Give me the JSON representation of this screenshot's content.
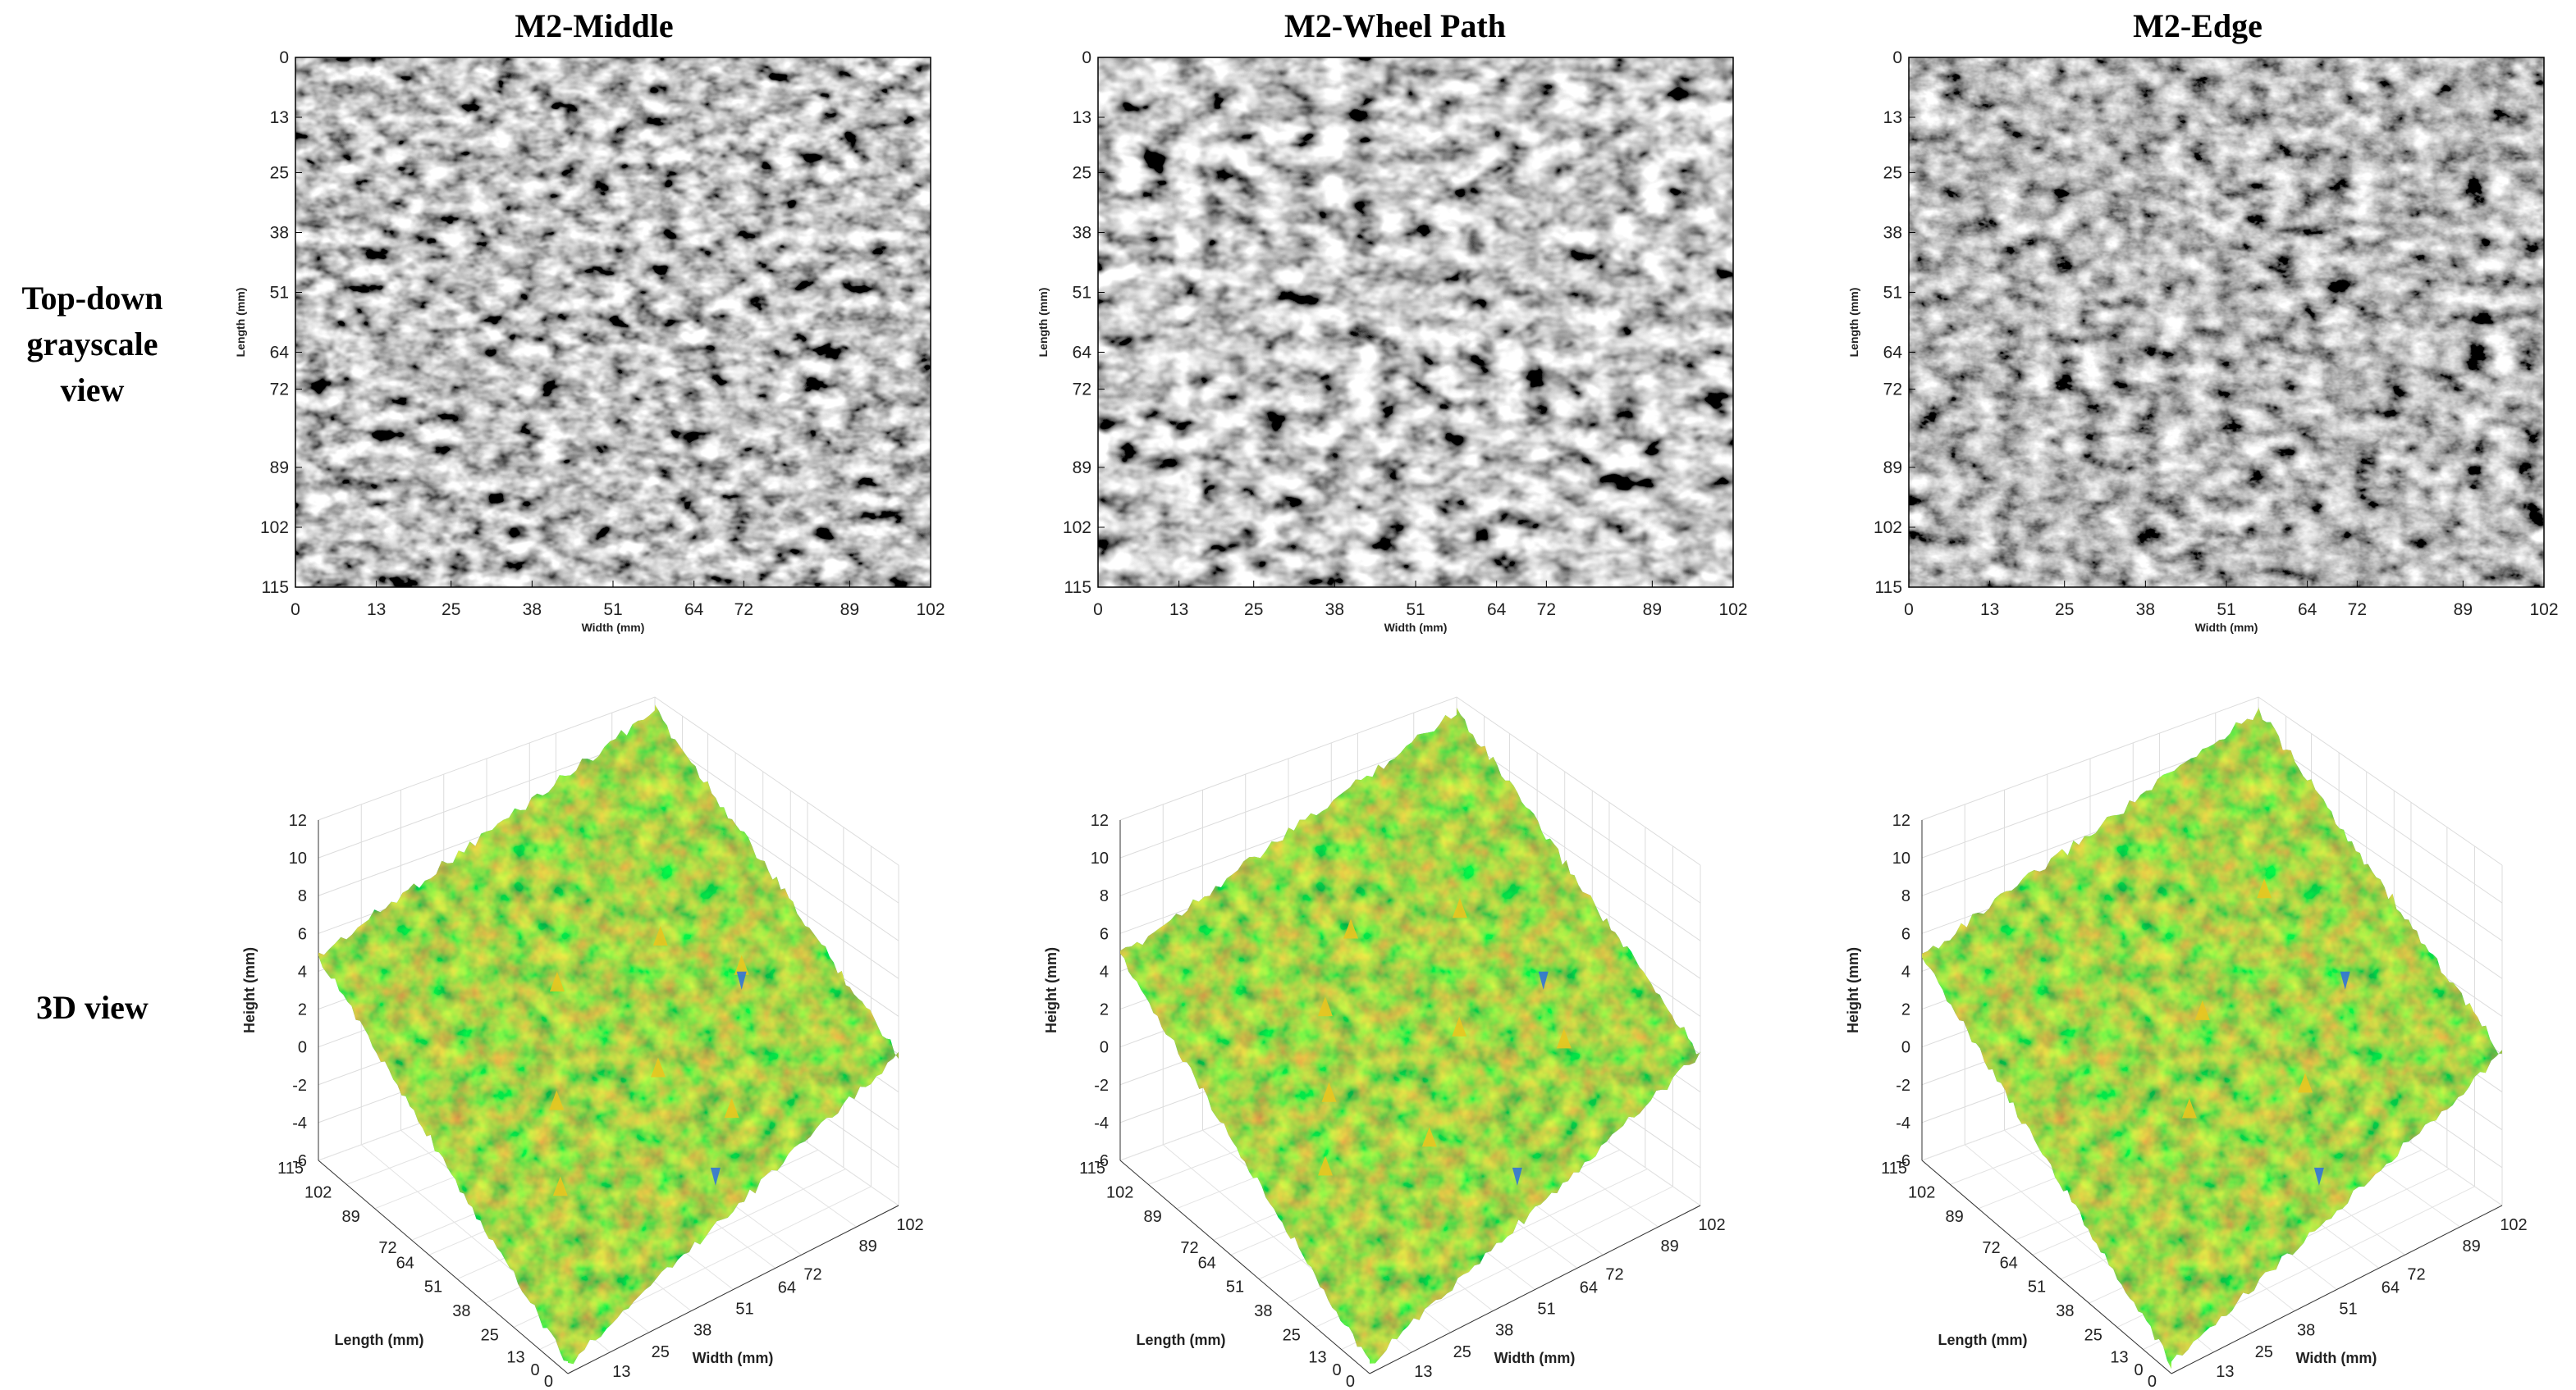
{
  "row_labels": {
    "top": [
      "Top-down",
      "grayscale",
      "view"
    ],
    "bottom": [
      "3D view"
    ]
  },
  "chart_data": [
    {
      "type": "heatmap",
      "title": "M2-Middle",
      "xlabel": "Width (mm)",
      "ylabel": "Length (mm)",
      "xticks": [
        "0",
        "13",
        "25",
        "38",
        "51",
        "64",
        "72",
        "89",
        "102"
      ],
      "yticks": [
        "0",
        "13",
        "25",
        "38",
        "51",
        "64",
        "72",
        "89",
        "102",
        "115"
      ],
      "xlim": [
        0,
        102
      ],
      "ylim": [
        115,
        0
      ],
      "colormap": "grayscale"
    },
    {
      "type": "heatmap",
      "title": "M2-Wheel Path",
      "xlabel": "Width (mm)",
      "ylabel": "Length (mm)",
      "xticks": [
        "0",
        "13",
        "25",
        "38",
        "51",
        "64",
        "72",
        "89",
        "102"
      ],
      "yticks": [
        "0",
        "13",
        "25",
        "38",
        "51",
        "64",
        "72",
        "89",
        "102",
        "115"
      ],
      "xlim": [
        0,
        102
      ],
      "ylim": [
        115,
        0
      ],
      "colormap": "grayscale"
    },
    {
      "type": "heatmap",
      "title": "M2-Edge",
      "xlabel": "Width (mm)",
      "ylabel": "Length (mm)",
      "xticks": [
        "0",
        "13",
        "25",
        "38",
        "51",
        "64",
        "72",
        "89",
        "102"
      ],
      "yticks": [
        "0",
        "13",
        "25",
        "38",
        "51",
        "64",
        "72",
        "89",
        "102",
        "115"
      ],
      "xlim": [
        0,
        102
      ],
      "ylim": [
        115,
        0
      ],
      "colormap": "grayscale"
    },
    {
      "type": "surface",
      "title": "",
      "xlabel": "Width (mm)",
      "ylabel": "Length (mm)",
      "zlabel": "Height (mm)",
      "width_ticks": [
        "0",
        "13",
        "25",
        "38",
        "51",
        "64",
        "72",
        "89",
        "102"
      ],
      "length_ticks": [
        "0",
        "13",
        "25",
        "38",
        "51",
        "64",
        "72",
        "89",
        "102",
        "115"
      ],
      "height_ticks": [
        "-6",
        "-4",
        "-2",
        "0",
        "2",
        "4",
        "6",
        "8",
        "10",
        "12"
      ],
      "zlim": [
        -6,
        12
      ],
      "colormap": "parula"
    },
    {
      "type": "surface",
      "title": "",
      "xlabel": "Width (mm)",
      "ylabel": "Length (mm)",
      "zlabel": "Height (mm)",
      "width_ticks": [
        "0",
        "13",
        "25",
        "38",
        "51",
        "64",
        "72",
        "89",
        "102"
      ],
      "length_ticks": [
        "0",
        "13",
        "25",
        "38",
        "51",
        "64",
        "72",
        "89",
        "102",
        "115"
      ],
      "height_ticks": [
        "-6",
        "-4",
        "-2",
        "0",
        "2",
        "4",
        "6",
        "8",
        "10",
        "12"
      ],
      "zlim": [
        -6,
        12
      ],
      "colormap": "parula"
    },
    {
      "type": "surface",
      "title": "",
      "xlabel": "Width (mm)",
      "ylabel": "Length (mm)",
      "zlabel": "Height (mm)",
      "width_ticks": [
        "0",
        "13",
        "25",
        "38",
        "51",
        "64",
        "72",
        "89",
        "102"
      ],
      "length_ticks": [
        "0",
        "13",
        "25",
        "38",
        "51",
        "64",
        "72",
        "89",
        "102",
        "115"
      ],
      "height_ticks": [
        "-6",
        "-4",
        "-2",
        "0",
        "2",
        "4",
        "6",
        "8",
        "10",
        "12"
      ],
      "zlim": [
        -6,
        12
      ],
      "colormap": "parula"
    }
  ]
}
